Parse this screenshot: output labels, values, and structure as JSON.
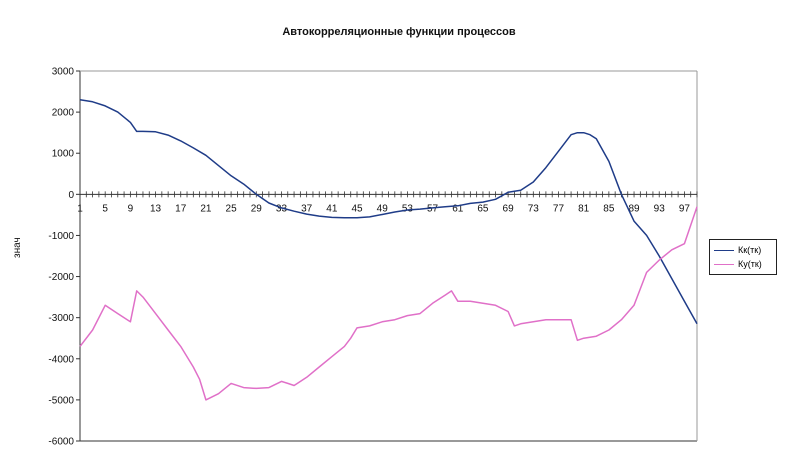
{
  "chart_data": {
    "type": "line",
    "title": "Автокорреляционные функции процессов",
    "xlabel": "",
    "ylabel": "знач",
    "ylim": [
      -6000,
      3000
    ],
    "yticks": [
      3000,
      2000,
      1000,
      0,
      -1000,
      -2000,
      -3000,
      -4000,
      -5000,
      -6000
    ],
    "x_tick_labels": [
      "1",
      "5",
      "9",
      "13",
      "17",
      "21",
      "25",
      "29",
      "33",
      "37",
      "41",
      "45",
      "49",
      "53",
      "57",
      "61",
      "65",
      "69",
      "73",
      "77",
      "81",
      "85",
      "89",
      "93",
      "97"
    ],
    "grid": false,
    "legend_position": "right",
    "series": [
      {
        "name": "Кк(тк)",
        "color": "#1f3c88",
        "x": [
          1,
          3,
          5,
          7,
          9,
          10,
          11,
          13,
          15,
          17,
          19,
          21,
          23,
          25,
          27,
          29,
          31,
          33,
          35,
          37,
          39,
          41,
          43,
          45,
          47,
          49,
          51,
          53,
          55,
          57,
          59,
          61,
          63,
          65,
          67,
          69,
          71,
          73,
          75,
          77,
          79,
          80,
          81,
          82,
          83,
          85,
          87,
          89,
          91,
          93,
          95,
          97,
          99
        ],
        "values": [
          2300,
          2250,
          2150,
          2000,
          1750,
          1530,
          1530,
          1520,
          1440,
          1300,
          1130,
          950,
          700,
          450,
          250,
          0,
          -210,
          -330,
          -410,
          -480,
          -530,
          -560,
          -570,
          -570,
          -550,
          -490,
          -430,
          -380,
          -360,
          -330,
          -300,
          -280,
          -220,
          -190,
          -120,
          50,
          100,
          300,
          650,
          1050,
          1450,
          1500,
          1500,
          1450,
          1350,
          800,
          0,
          -650,
          -1000,
          -1500,
          -2050,
          -2600,
          -3150
        ]
      },
      {
        "name": "Ку(тк)",
        "color": "#e070c8",
        "x": [
          1,
          3,
          5,
          7,
          9,
          10,
          11,
          13,
          15,
          17,
          19,
          20,
          21,
          23,
          25,
          27,
          29,
          31,
          33,
          34,
          35,
          37,
          39,
          41,
          43,
          44,
          45,
          47,
          49,
          51,
          53,
          55,
          57,
          59,
          60,
          61,
          63,
          65,
          67,
          69,
          70,
          71,
          73,
          75,
          77,
          79,
          80,
          81,
          83,
          85,
          87,
          89,
          90,
          91,
          93,
          95,
          97,
          99
        ],
        "values": [
          -3700,
          -3300,
          -2700,
          -2900,
          -3100,
          -2350,
          -2500,
          -2900,
          -3300,
          -3700,
          -4200,
          -4500,
          -5000,
          -4850,
          -4600,
          -4700,
          -4720,
          -4700,
          -4550,
          -4600,
          -4650,
          -4450,
          -4200,
          -3950,
          -3700,
          -3500,
          -3250,
          -3200,
          -3100,
          -3050,
          -2950,
          -2900,
          -2650,
          -2450,
          -2350,
          -2600,
          -2600,
          -2650,
          -2700,
          -2850,
          -3200,
          -3150,
          -3100,
          -3050,
          -3050,
          -3050,
          -3550,
          -3500,
          -3450,
          -3300,
          -3050,
          -2700,
          -2300,
          -1900,
          -1600,
          -1350,
          -1200,
          -300
        ]
      }
    ]
  }
}
